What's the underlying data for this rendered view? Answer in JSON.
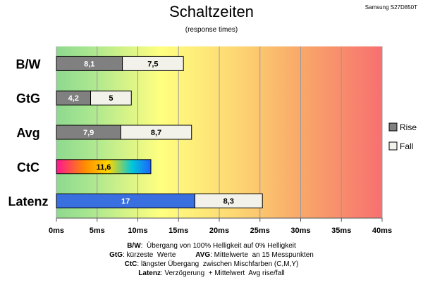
{
  "header": {
    "title": "Schaltzeiten",
    "subtitle": "(response times)",
    "model": "Samsung S27D850T"
  },
  "chart_data": {
    "type": "bar",
    "orientation": "horizontal",
    "stacked": true,
    "title": "Schaltzeiten",
    "subtitle": "(response times)",
    "categories": [
      "B/W",
      "GtG",
      "Avg",
      "CtC",
      "Latenz"
    ],
    "series": [
      {
        "name": "Rise",
        "values": [
          8.1,
          4.2,
          7.9,
          11.6,
          17
        ],
        "labels": [
          "8,1",
          "4,2",
          "7,9",
          "11,6",
          "17"
        ]
      },
      {
        "name": "Fall",
        "values": [
          7.5,
          5,
          8.7,
          null,
          8.3
        ],
        "labels": [
          "7,5",
          "5",
          "8,7",
          "",
          "8,3"
        ]
      }
    ],
    "xlim": [
      0,
      40
    ],
    "xticks": [
      0,
      5,
      10,
      15,
      20,
      25,
      30,
      35,
      40
    ],
    "xtick_labels": [
      "0ms",
      "5ms",
      "10ms",
      "15ms",
      "20ms",
      "25ms",
      "30ms",
      "35ms",
      "40ms"
    ],
    "grid": true,
    "legend": "right",
    "background": "gradient green-yellow-orange-red",
    "colors": {
      "rise": "#808080",
      "fall": "#f2f2ea",
      "latenz_rise": "#3a6fe0",
      "bar_border": "#000000",
      "grad_green": "#8fd98f",
      "grad_yellow": "#ffff80",
      "grad_orange": "#f8c060",
      "grad_red": "#f77070"
    }
  },
  "notes": [
    [
      {
        "b": true,
        "t": "B/W"
      },
      {
        "b": false,
        "t": ":  Übergang von 100% Helligkeit auf 0% Helligkeit"
      }
    ],
    [
      {
        "b": true,
        "t": "GtG"
      },
      {
        "b": false,
        "t": ": kürzeste  Werte          "
      },
      {
        "b": true,
        "t": "AVG"
      },
      {
        "b": false,
        "t": ": Mittelwerte  an 15 Messpunkten"
      }
    ],
    [
      {
        "b": true,
        "t": "CtC"
      },
      {
        "b": false,
        "t": ": längster Übergang  zwischen Mischfarben (C,M,Y)"
      }
    ],
    [
      {
        "b": true,
        "t": "Latenz"
      },
      {
        "b": false,
        "t": ": Verzögerung  + Mittelwert  Avg rise/fall"
      }
    ]
  ]
}
